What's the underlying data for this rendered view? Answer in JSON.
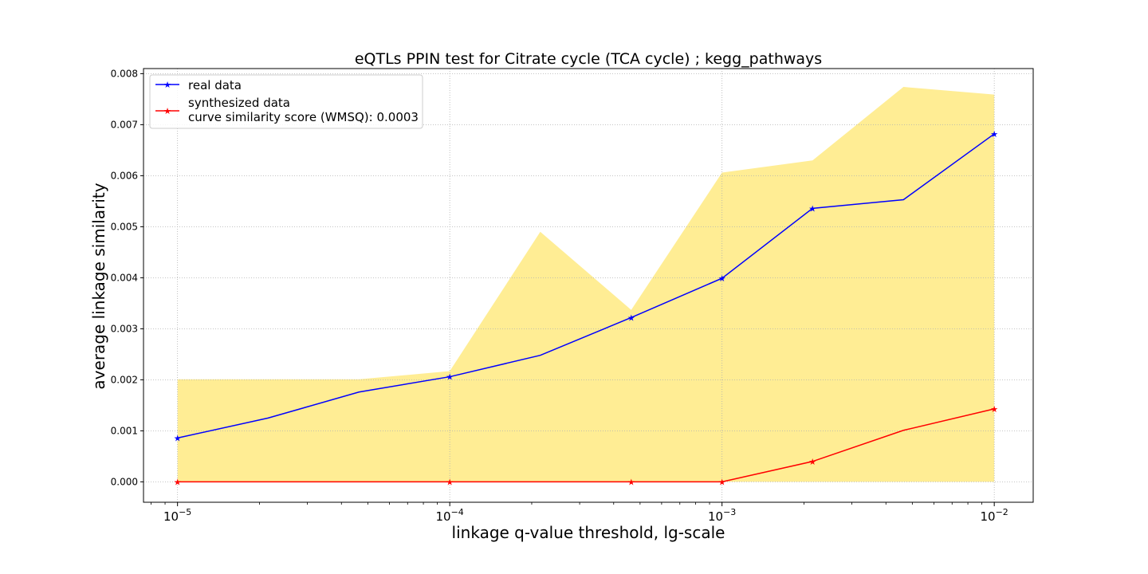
{
  "chart_data": {
    "type": "line",
    "title": "eQTLs PPIN test for Citrate cycle (TCA cycle) ; kegg_pathways",
    "xlabel": "linkage q-value threshold, lg-scale",
    "ylabel": "average linkage similarity",
    "x_scale": "log",
    "xlim": [
      7.5e-06,
      0.0139
    ],
    "ylim": [
      -0.0004,
      0.0081
    ],
    "grid": true,
    "legend_position": "top-left",
    "x_ticks": [
      {
        "value": 1e-05,
        "base": "10",
        "exp": "−5"
      },
      {
        "value": 0.0001,
        "base": "10",
        "exp": "−4"
      },
      {
        "value": 0.001,
        "base": "10",
        "exp": "−3"
      },
      {
        "value": 0.01,
        "base": "10",
        "exp": "−2"
      }
    ],
    "y_ticks": [
      {
        "value": 0.0,
        "label": "0.000"
      },
      {
        "value": 0.001,
        "label": "0.001"
      },
      {
        "value": 0.002,
        "label": "0.002"
      },
      {
        "value": 0.003,
        "label": "0.003"
      },
      {
        "value": 0.004,
        "label": "0.004"
      },
      {
        "value": 0.005,
        "label": "0.005"
      },
      {
        "value": 0.006,
        "label": "0.006"
      },
      {
        "value": 0.007,
        "label": "0.007"
      },
      {
        "value": 0.008,
        "label": "0.008"
      }
    ],
    "x": [
      1e-05,
      2.15e-05,
      4.64e-05,
      0.0001,
      0.000215,
      0.000464,
      0.001,
      0.00215,
      0.00464,
      0.01
    ],
    "series": [
      {
        "name": "real data",
        "color": "#0000ff",
        "values": [
          0.00086,
          0.00125,
          0.00176,
          0.00206,
          0.00248,
          0.00322,
          0.00399,
          0.00536,
          0.00553,
          0.00682
        ],
        "marker_indices": [
          0,
          3,
          5,
          6,
          7,
          9
        ]
      },
      {
        "name": "synthesized data",
        "name_line2": "curve similarity score (WMSQ): 0.0003",
        "color": "#ff0000",
        "values": [
          0.0,
          0.0,
          0.0,
          0.0,
          0.0,
          0.0,
          0.0,
          0.0004,
          0.00101,
          0.00143
        ],
        "marker_indices": [
          0,
          3,
          5,
          6,
          7,
          9
        ]
      }
    ],
    "band": {
      "color": "#ffe566",
      "lower": [
        0.0,
        0.0,
        0.0,
        0.0,
        0.0,
        0.0,
        0.0,
        0.0,
        0.0,
        0.0
      ],
      "upper": [
        0.00201,
        0.00201,
        0.00201,
        0.00217,
        0.0049,
        0.00337,
        0.00606,
        0.0063,
        0.00774,
        0.00759
      ]
    }
  }
}
